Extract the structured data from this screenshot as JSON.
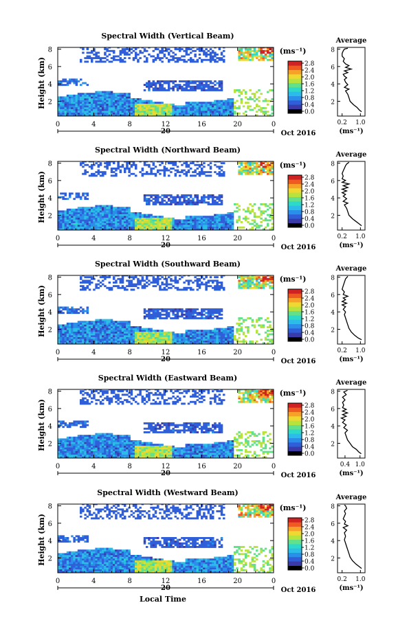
{
  "chart_data": [
    {
      "type": "heatmap",
      "title": "Spectral Width (Vertical Beam)",
      "ylabel": "Height (km)",
      "y_tick_labels": [
        "2",
        "4",
        "6",
        "8"
      ],
      "x_tick_labels": [
        "0",
        "4",
        "8",
        "12",
        "16",
        "20",
        "0"
      ],
      "date_label": "20",
      "month_label": "Oct 2016",
      "colorbar_unit": "(ms⁻¹)",
      "colorbar_tick_labels": [
        "0.0",
        "0.4",
        "0.8",
        "1.2",
        "1.6",
        "2.0",
        "2.4",
        "2.8"
      ],
      "average_profile": {
        "title": "Average",
        "xlabel": "(ms⁻¹)",
        "x_tick_labels": [
          "0.2",
          "1.0"
        ],
        "y_tick_labels": [
          "2",
          "4",
          "6",
          "8"
        ],
        "xlim": [
          0.0,
          1.2
        ],
        "ylim": [
          0.3,
          8.2
        ],
        "x": [
          1.05,
          0.95,
          0.85,
          0.7,
          0.55,
          0.5,
          0.45,
          0.35,
          0.5,
          0.3,
          0.45,
          0.35,
          0.3,
          0.4,
          0.3,
          0.25,
          0.45,
          0.3,
          0.6,
          0.35,
          0.5,
          0.35,
          0.25,
          0.3,
          0.2,
          0.2,
          0.25,
          0.3,
          0.45
        ],
        "y": [
          0.8,
          1.0,
          1.3,
          1.6,
          2.0,
          2.4,
          2.8,
          3.2,
          3.4,
          3.6,
          3.9,
          4.2,
          4.5,
          4.7,
          4.9,
          5.1,
          5.3,
          5.5,
          5.7,
          5.9,
          6.1,
          6.3,
          6.6,
          6.9,
          7.2,
          7.5,
          7.8,
          8.0,
          8.1
        ]
      }
    },
    {
      "type": "heatmap",
      "title": "Spectral Width (Northward Beam)",
      "ylabel": "Height (km)",
      "y_tick_labels": [
        "2",
        "4",
        "6",
        "8"
      ],
      "x_tick_labels": [
        "0",
        "4",
        "8",
        "12",
        "16",
        "20",
        "0"
      ],
      "date_label": "20",
      "month_label": "Oct 2016",
      "colorbar_unit": "(ms⁻¹)",
      "colorbar_tick_labels": [
        "0.0",
        "0.4",
        "0.8",
        "1.2",
        "1.6",
        "2.0",
        "2.4",
        "2.8"
      ],
      "average_profile": {
        "title": "Average",
        "xlabel": "(ms⁻¹)",
        "x_tick_labels": [
          "0.2",
          "1.0"
        ],
        "y_tick_labels": [
          "2",
          "4",
          "6",
          "8"
        ],
        "xlim": [
          0.0,
          1.2
        ],
        "ylim": [
          0.3,
          8.2
        ],
        "x": [
          1.05,
          0.95,
          0.8,
          0.65,
          0.5,
          0.45,
          0.4,
          0.3,
          0.45,
          0.25,
          0.4,
          0.25,
          0.35,
          0.2,
          0.4,
          0.2,
          0.45,
          0.25,
          0.5,
          0.2,
          0.35,
          0.2,
          0.25,
          0.2,
          0.25,
          0.3,
          0.35,
          0.4,
          0.5
        ],
        "y": [
          0.8,
          1.0,
          1.3,
          1.6,
          2.0,
          2.4,
          2.8,
          3.2,
          3.4,
          3.6,
          3.9,
          4.2,
          4.4,
          4.6,
          4.8,
          5.0,
          5.2,
          5.4,
          5.6,
          5.8,
          6.0,
          6.2,
          6.5,
          6.8,
          7.1,
          7.4,
          7.7,
          7.9,
          8.1
        ]
      }
    },
    {
      "type": "heatmap",
      "title": "Spectral Width (Southward Beam)",
      "ylabel": "Height (km)",
      "y_tick_labels": [
        "2",
        "4",
        "6",
        "8"
      ],
      "x_tick_labels": [
        "0",
        "4",
        "8",
        "12",
        "16",
        "20",
        "0"
      ],
      "date_label": "20",
      "month_label": "Oct 2016",
      "colorbar_unit": "(ms⁻¹)",
      "colorbar_tick_labels": [
        "0.0",
        "0.4",
        "0.8",
        "1.2",
        "1.6",
        "2.0",
        "2.4",
        "2.8"
      ],
      "average_profile": {
        "title": "Average",
        "xlabel": "(ms⁻¹)",
        "x_tick_labels": [
          "0.2",
          "1.0"
        ],
        "y_tick_labels": [
          "2",
          "4",
          "6",
          "8"
        ],
        "xlim": [
          0.0,
          1.2
        ],
        "ylim": [
          0.3,
          8.2
        ],
        "x": [
          1.05,
          0.9,
          0.75,
          0.6,
          0.5,
          0.45,
          0.4,
          0.35,
          0.3,
          0.35,
          0.25,
          0.35,
          0.2,
          0.4,
          0.2,
          0.35,
          0.25,
          0.45,
          0.25,
          0.3,
          0.2,
          0.25,
          0.3,
          0.35,
          0.45
        ],
        "y": [
          0.8,
          1.0,
          1.3,
          1.7,
          2.1,
          2.5,
          2.9,
          3.3,
          3.7,
          4.0,
          4.3,
          4.6,
          4.8,
          5.0,
          5.2,
          5.4,
          5.6,
          5.8,
          6.0,
          6.3,
          6.6,
          7.0,
          7.4,
          7.8,
          8.1
        ]
      }
    },
    {
      "type": "heatmap",
      "title": "Spectral Width (Eastward Beam)",
      "ylabel": "Height (km)",
      "y_tick_labels": [
        "2",
        "4",
        "6",
        "8"
      ],
      "x_tick_labels": [
        "0",
        "4",
        "8",
        "12",
        "16",
        "20",
        "0"
      ],
      "date_label": "20",
      "month_label": "Oct 2016",
      "colorbar_unit": "(ms⁻¹)",
      "colorbar_tick_labels": [
        "0.0",
        "0.4",
        "0.8",
        "1.2",
        "1.6",
        "2.0",
        "2.4",
        "2.8"
      ],
      "average_profile": {
        "title": "Average",
        "xlabel": "(ms⁻¹)",
        "x_tick_labels": [
          "0.4",
          "1.0"
        ],
        "y_tick_labels": [
          "2",
          "4",
          "6",
          "8"
        ],
        "xlim": [
          0.1,
          1.2
        ],
        "ylim": [
          0.3,
          8.2
        ],
        "x": [
          1.05,
          0.95,
          0.85,
          0.7,
          0.6,
          0.5,
          0.45,
          0.4,
          0.5,
          0.35,
          0.45,
          0.3,
          0.4,
          0.25,
          0.45,
          0.3,
          0.5,
          0.3,
          0.45,
          0.3,
          0.35,
          0.3,
          0.4,
          0.3,
          0.45,
          0.35,
          0.5
        ],
        "y": [
          0.8,
          1.0,
          1.3,
          1.6,
          2.0,
          2.4,
          2.8,
          3.2,
          3.5,
          3.8,
          4.1,
          4.4,
          4.7,
          4.9,
          5.1,
          5.3,
          5.5,
          5.7,
          5.9,
          6.1,
          6.4,
          6.7,
          7.0,
          7.3,
          7.6,
          7.9,
          8.1
        ]
      }
    },
    {
      "type": "heatmap",
      "title": "Spectral Width (Westward Beam)",
      "ylabel": "Height (km)",
      "y_tick_labels": [
        "2",
        "4",
        "6",
        "8"
      ],
      "x_tick_labels": [
        "0",
        "4",
        "8",
        "12",
        "16",
        "20",
        "0"
      ],
      "date_label": "20",
      "month_label": "Oct 2016",
      "colorbar_unit": "(ms⁻¹)",
      "colorbar_tick_labels": [
        "0.0",
        "0.4",
        "0.8",
        "1.2",
        "1.6",
        "2.0",
        "2.4",
        "2.8"
      ],
      "xlabel": "Local Time",
      "average_profile": {
        "title": "Average",
        "xlabel": "(ms⁻¹)",
        "x_tick_labels": [
          "0.2",
          "1.0"
        ],
        "y_tick_labels": [
          "2",
          "4",
          "6",
          "8"
        ],
        "xlim": [
          0.0,
          1.2
        ],
        "ylim": [
          0.3,
          8.2
        ],
        "x": [
          1.05,
          0.95,
          0.8,
          0.65,
          0.55,
          0.5,
          0.45,
          0.4,
          0.35,
          0.3,
          0.35,
          0.3,
          0.4,
          0.25,
          0.45,
          0.3,
          0.35,
          0.25,
          0.3,
          0.35,
          0.3,
          0.4,
          0.35,
          0.3
        ],
        "y": [
          0.8,
          1.0,
          1.3,
          1.7,
          2.1,
          2.5,
          2.9,
          3.3,
          3.7,
          4.1,
          4.5,
          4.9,
          5.2,
          5.5,
          5.7,
          5.9,
          6.2,
          6.5,
          6.8,
          7.1,
          7.4,
          7.7,
          8.0,
          8.1
        ]
      }
    }
  ],
  "colors": {
    "colormap": [
      "#000000",
      "#3a3aa8",
      "#2f5ed8",
      "#2a8fe8",
      "#2bbde8",
      "#2fd9c8",
      "#62e08a",
      "#b8e23c",
      "#f0d832",
      "#f7a12a",
      "#ef5a22",
      "#cf2222"
    ],
    "axis": "#000000",
    "background": "#ffffff"
  }
}
